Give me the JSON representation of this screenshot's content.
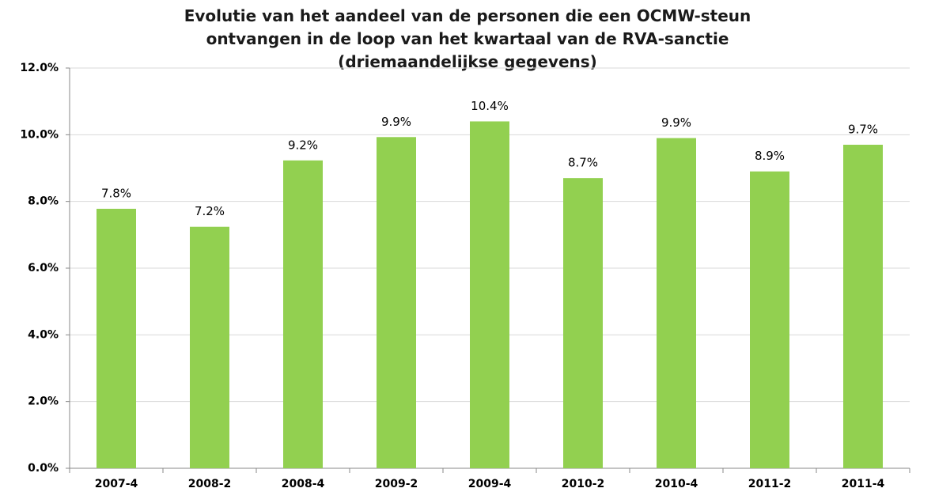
{
  "chart_data": {
    "type": "bar",
    "title": "Evolutie van het aandeel van de personen die een OCMW-steun ontvangen in de loop van het kwartaal van de RVA-sanctie (driemaandelijkse gegevens)",
    "categories": [
      "2007-4",
      "2008-2",
      "2008-4",
      "2009-2",
      "2009-4",
      "2010-2",
      "2010-4",
      "2011-2",
      "2011-4"
    ],
    "values": [
      7.78,
      7.24,
      9.23,
      9.93,
      10.4,
      8.7,
      9.9,
      8.9,
      9.7
    ],
    "value_labels": [
      "7.8%",
      "7.2%",
      "9.2%",
      "9.9%",
      "10.4%",
      "8.7%",
      "9.9%",
      "8.9%",
      "9.7%"
    ],
    "color": "#92d050",
    "ylim": [
      0,
      12
    ],
    "yticks": [
      {
        "value": 0,
        "label": "0.0%"
      },
      {
        "value": 2,
        "label": "2.0%"
      },
      {
        "value": 4,
        "label": "4.0%"
      },
      {
        "value": 6,
        "label": "6.0%"
      },
      {
        "value": 8,
        "label": "8.0%"
      },
      {
        "value": 10,
        "label": "10.0%"
      },
      {
        "value": 12,
        "label": "12.0%"
      }
    ],
    "grid": true
  }
}
